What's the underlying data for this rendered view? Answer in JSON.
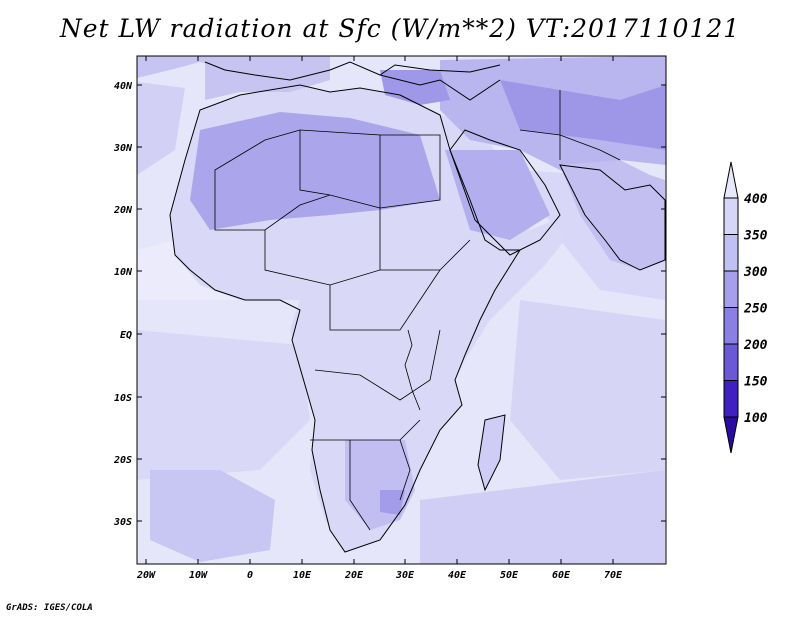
{
  "title": "Net LW radiation at Sfc (W/m**2) VT:2017110121",
  "credit": "GrADS: IGES/COLA",
  "map": {
    "lat_range": [
      -37,
      45
    ],
    "lon_range": [
      -22,
      80
    ],
    "lat_ticks": [
      "40N",
      "30N",
      "20N",
      "10N",
      "EQ",
      "10S",
      "20S",
      "30S"
    ],
    "lon_ticks": [
      "20W",
      "10W",
      "0",
      "10E",
      "20E",
      "30E",
      "40E",
      "50E",
      "60E",
      "70E"
    ]
  },
  "colorbar": {
    "levels": [
      "400",
      "350",
      "300",
      "250",
      "200",
      "150",
      "100"
    ],
    "colors": [
      "#e8e8fb",
      "#d6d6f7",
      "#c0c0f2",
      "#a6a0ec",
      "#8a7fe3",
      "#6a58d6",
      "#4020c0",
      "#2a0ca0"
    ]
  }
}
